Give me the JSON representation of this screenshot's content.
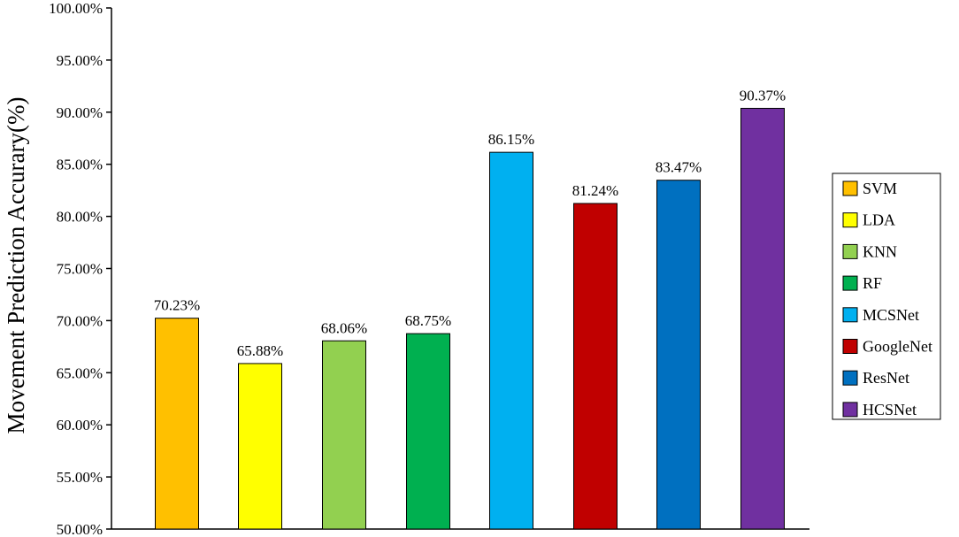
{
  "chart_data": {
    "type": "bar",
    "title": "",
    "xlabel": "",
    "ylabel": "Movement Prediction Accurary(%)",
    "ylim": [
      50,
      100
    ],
    "y_ticks": [
      "50.00%",
      "55.00%",
      "60.00%",
      "65.00%",
      "70.00%",
      "75.00%",
      "80.00%",
      "85.00%",
      "90.00%",
      "95.00%",
      "100.00%"
    ],
    "grid": false,
    "legend_position": "right",
    "categories": [
      "SVM",
      "LDA",
      "KNN",
      "RF",
      "MCSNet",
      "GoogleNet",
      "ResNet",
      "HCSNet"
    ],
    "values": [
      70.23,
      65.88,
      68.06,
      68.75,
      86.15,
      81.24,
      83.47,
      90.37
    ],
    "value_labels": [
      "70.23%",
      "65.88%",
      "68.06%",
      "68.75%",
      "86.15%",
      "81.24%",
      "83.47%",
      "90.37%"
    ],
    "colors": [
      "#FFC000",
      "#FFFF00",
      "#92D050",
      "#00B050",
      "#00B0F0",
      "#C00000",
      "#0070C0",
      "#7030A0"
    ]
  }
}
